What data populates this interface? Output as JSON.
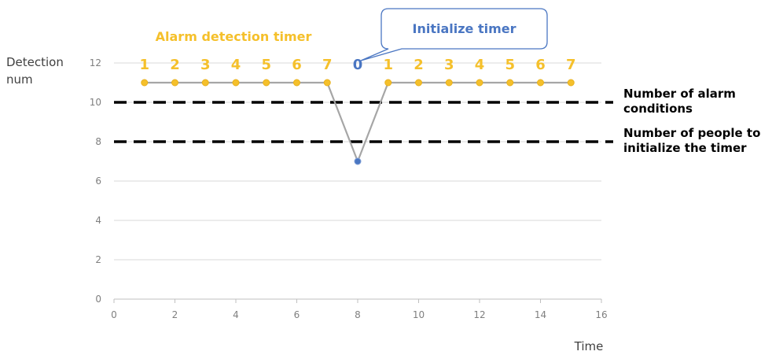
{
  "chart_data": {
    "type": "line",
    "title": "",
    "xlabel": "Time",
    "ylabel": "Detection num",
    "xlim": [
      0,
      16
    ],
    "ylim": [
      0,
      12
    ],
    "x_ticks": [
      0,
      2,
      4,
      6,
      8,
      10,
      12,
      14,
      16
    ],
    "y_ticks": [
      0,
      2,
      4,
      6,
      8,
      10,
      12
    ],
    "grid": "horizontal",
    "series": [
      {
        "x": [
          1,
          2,
          3,
          4,
          5,
          6,
          7,
          8,
          9,
          10,
          11,
          12,
          13,
          14,
          15
        ],
        "y": [
          11,
          11,
          11,
          11,
          11,
          11,
          11,
          7,
          11,
          11,
          11,
          11,
          11,
          11,
          11
        ],
        "color": "#a6a6a6",
        "marker_color": "#f5c02b",
        "highlight_marker_color": "#4a76c2"
      }
    ],
    "reference_lines": [
      {
        "y": 10,
        "label": "Number of alarm conditions",
        "style": "dashed",
        "color": "#000000"
      },
      {
        "y": 8,
        "label": "Number of people to initialize the timer",
        "style": "dashed",
        "color": "#000000"
      }
    ],
    "timer_counts": [
      {
        "x": 1,
        "text": "1"
      },
      {
        "x": 2,
        "text": "2"
      },
      {
        "x": 3,
        "text": "3"
      },
      {
        "x": 4,
        "text": "4"
      },
      {
        "x": 5,
        "text": "5"
      },
      {
        "x": 6,
        "text": "6"
      },
      {
        "x": 7,
        "text": "7"
      },
      {
        "x": 8,
        "text": "0"
      },
      {
        "x": 9,
        "text": "1"
      },
      {
        "x": 10,
        "text": "2"
      },
      {
        "x": 11,
        "text": "3"
      },
      {
        "x": 12,
        "text": "4"
      },
      {
        "x": 13,
        "text": "5"
      },
      {
        "x": 14,
        "text": "6"
      },
      {
        "x": 15,
        "text": "7"
      }
    ],
    "annotations": {
      "alarm_timer": "Alarm detection timer",
      "initialize_timer": "Initialize timer"
    },
    "colors": {
      "counter": "#f5c02b",
      "reset": "#4a76c2",
      "callout_border": "#4a76c2"
    }
  }
}
